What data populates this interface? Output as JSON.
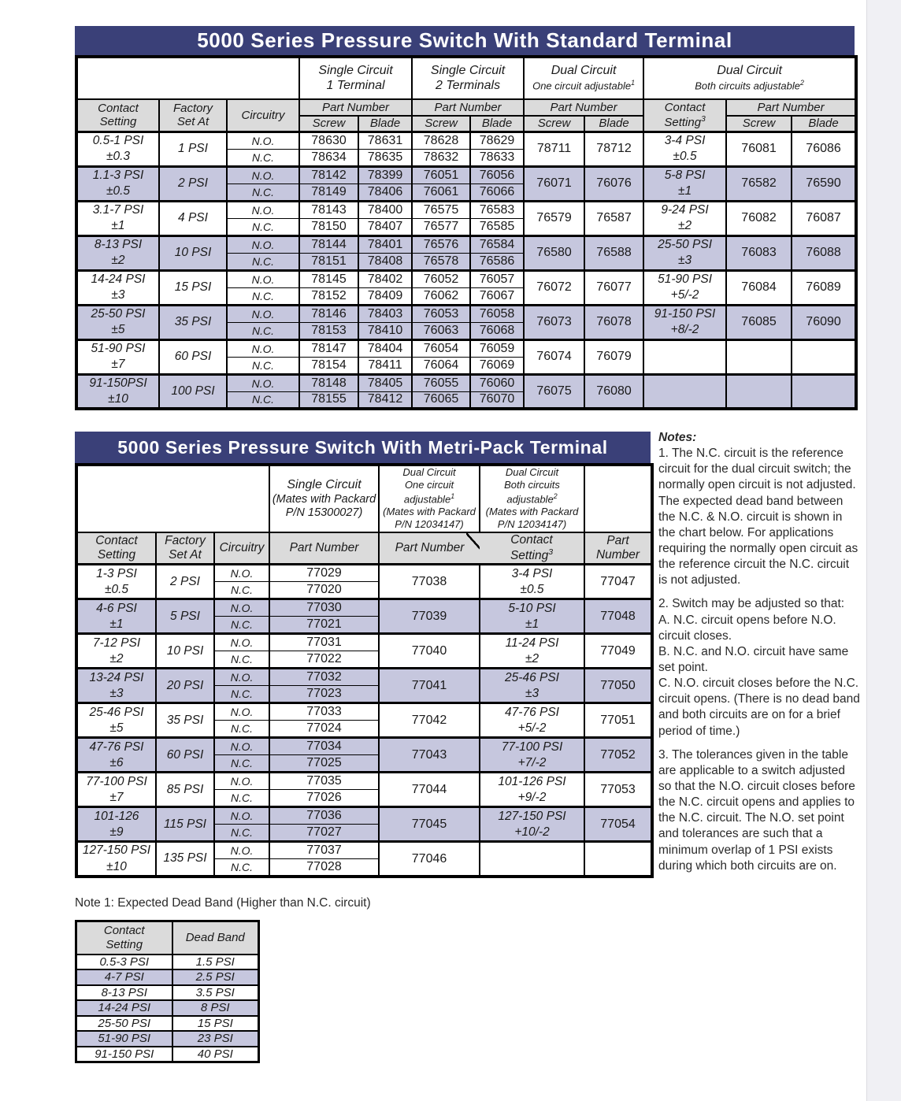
{
  "colors": {
    "title_bar": "#3a4078",
    "row_shade": "#c6c7de",
    "header_fill": "#dbdbdb",
    "page_edge_strip": "#f0f0f4"
  },
  "labels": {
    "contact_setting": "Contact\nSetting",
    "factory_set_at": "Factory\nSet At",
    "circuitry": "Circuitry",
    "part_number": "Part Number",
    "part_number_stacked": "Part\nNumber",
    "screw": "Screw",
    "blade": "Blade",
    "contact_setting3": "Contact\nSetting",
    "contact_setting3_sup": "3",
    "no": "N.O.",
    "nc": "N.C."
  },
  "table1": {
    "title": "5000 Series Pressure Switch With Standard Terminal",
    "group_headers": [
      {
        "l1": "Single Circuit",
        "l2": "1 Terminal",
        "sup": ""
      },
      {
        "l1": "Single Circuit",
        "l2": "2 Terminals",
        "sup": ""
      },
      {
        "l1": "Dual Circuit",
        "l2": "One circuit adjustable",
        "sup": "1"
      },
      {
        "l1": "Dual Circuit",
        "l2": "Both circuits adjustable",
        "sup": "2"
      }
    ],
    "rows": [
      {
        "cs": "0.5-1 PSI\n±0.3",
        "set": "1 PSI",
        "no": [
          "78630",
          "78631",
          "78628",
          "78629"
        ],
        "nc": [
          "78634",
          "78635",
          "78632",
          "78633"
        ],
        "d1": [
          "78711",
          "78712"
        ],
        "cs3": "3-4 PSI\n±0.5",
        "d2": [
          "76081",
          "76086"
        ],
        "shaded": false
      },
      {
        "cs": "1.1-3 PSI\n±0.5",
        "set": "2 PSI",
        "no": [
          "78142",
          "78399",
          "76051",
          "76056"
        ],
        "nc": [
          "78149",
          "78406",
          "76061",
          "76066"
        ],
        "d1": [
          "76071",
          "76076"
        ],
        "cs3": "5-8 PSI\n±1",
        "d2": [
          "76582",
          "76590"
        ],
        "shaded": true
      },
      {
        "cs": "3.1-7 PSI\n±1",
        "set": "4 PSI",
        "no": [
          "78143",
          "78400",
          "76575",
          "76583"
        ],
        "nc": [
          "78150",
          "78407",
          "76577",
          "76585"
        ],
        "d1": [
          "76579",
          "76587"
        ],
        "cs3": "9-24 PSI\n±2",
        "d2": [
          "76082",
          "76087"
        ],
        "shaded": false
      },
      {
        "cs": "8-13 PSI\n±2",
        "set": "10 PSI",
        "no": [
          "78144",
          "78401",
          "76576",
          "76584"
        ],
        "nc": [
          "78151",
          "78408",
          "76578",
          "76586"
        ],
        "d1": [
          "76580",
          "76588"
        ],
        "cs3": "25-50 PSI\n±3",
        "d2": [
          "76083",
          "76088"
        ],
        "shaded": true
      },
      {
        "cs": "14-24 PSI\n±3",
        "set": "15 PSI",
        "no": [
          "78145",
          "78402",
          "76052",
          "76057"
        ],
        "nc": [
          "78152",
          "78409",
          "76062",
          "76067"
        ],
        "d1": [
          "76072",
          "76077"
        ],
        "cs3": "51-90 PSI\n+5/-2",
        "d2": [
          "76084",
          "76089"
        ],
        "shaded": false
      },
      {
        "cs": "25-50 PSI\n±5",
        "set": "35 PSI",
        "no": [
          "78146",
          "78403",
          "76053",
          "76058"
        ],
        "nc": [
          "78153",
          "78410",
          "76063",
          "76068"
        ],
        "d1": [
          "76073",
          "76078"
        ],
        "cs3": "91-150 PSI\n+8/-2",
        "d2": [
          "76085",
          "76090"
        ],
        "shaded": true
      },
      {
        "cs": "51-90 PSI\n±7",
        "set": "60 PSI",
        "no": [
          "78147",
          "78404",
          "76054",
          "76059"
        ],
        "nc": [
          "78154",
          "78411",
          "76064",
          "76069"
        ],
        "d1": [
          "76074",
          "76079"
        ],
        "cs3": "",
        "d2": [
          "",
          ""
        ],
        "shaded": false
      },
      {
        "cs": "91-150PSI\n±10",
        "set": "100 PSI",
        "no": [
          "78148",
          "78405",
          "76055",
          "76060"
        ],
        "nc": [
          "78155",
          "78412",
          "76065",
          "76070"
        ],
        "d1": [
          "76075",
          "76080"
        ],
        "cs3": "",
        "d2": [
          "",
          ""
        ],
        "shaded": true
      }
    ]
  },
  "table2": {
    "title": "5000 Series Pressure Switch With Metri-Pack Terminal",
    "group_headers": [
      {
        "l1": "Single Circuit",
        "l2": "(Mates with Packard",
        "l3": "P/N 15300027)",
        "sup": ""
      },
      {
        "l1": "Dual Circuit",
        "l2": "One circuit adjustable",
        "sup": "1",
        "l3": "(Mates with Packard",
        "l4": "P/N 12034147)"
      },
      {
        "l1": "Dual Circuit",
        "l2": "Both circuits adjustable",
        "sup": "2",
        "l3": "(Mates with Packard",
        "l4": "P/N 12034147)"
      }
    ],
    "rows": [
      {
        "cs": "1-3 PSI\n±0.5",
        "set": "2 PSI",
        "no": "77029",
        "nc": "77020",
        "d1": "77038",
        "cs3": "3-4 PSI\n±0.5",
        "pn3": "77047",
        "shaded": false
      },
      {
        "cs": "4-6 PSI\n±1",
        "set": "5 PSI",
        "no": "77030",
        "nc": "77021",
        "d1": "77039",
        "cs3": "5-10 PSI\n±1",
        "pn3": "77048",
        "shaded": true
      },
      {
        "cs": "7-12 PSI\n±2",
        "set": "10 PSI",
        "no": "77031",
        "nc": "77022",
        "d1": "77040",
        "cs3": "11-24 PSI\n±2",
        "pn3": "77049",
        "shaded": false
      },
      {
        "cs": "13-24 PSI\n±3",
        "set": "20 PSI",
        "no": "77032",
        "nc": "77023",
        "d1": "77041",
        "cs3": "25-46 PSI\n±3",
        "pn3": "77050",
        "shaded": true
      },
      {
        "cs": "25-46 PSI\n±5",
        "set": "35 PSI",
        "no": "77033",
        "nc": "77024",
        "d1": "77042",
        "cs3": "47-76 PSI\n+5/-2",
        "pn3": "77051",
        "shaded": false
      },
      {
        "cs": "47-76 PSI\n±6",
        "set": "60 PSI",
        "no": "77034",
        "nc": "77025",
        "d1": "77043",
        "cs3": "77-100 PSI\n+7/-2",
        "pn3": "77052",
        "shaded": true
      },
      {
        "cs": "77-100 PSI\n±7",
        "set": "85 PSI",
        "no": "77035",
        "nc": "77026",
        "d1": "77044",
        "cs3": "101-126 PSI\n+9/-2",
        "pn3": "77053",
        "shaded": false
      },
      {
        "cs": "101-126\n±9",
        "set": "115 PSI",
        "no": "77036",
        "nc": "77027",
        "d1": "77045",
        "cs3": "127-150 PSI\n+10/-2",
        "pn3": "77054",
        "shaded": true
      },
      {
        "cs": "127-150 PSI\n±10",
        "set": "135 PSI",
        "no": "77037",
        "nc": "77028",
        "d1": "77046",
        "cs3": "",
        "pn3": "",
        "shaded": false
      }
    ]
  },
  "notes": {
    "title": "Notes:",
    "paragraphs": [
      "1. The N.C. circuit is the reference circuit for the dual circuit switch; the normally open circuit is not adjusted.  The expected dead band between the N.C. & N.O. circuit is shown in the chart below.  For applications requiring the normally open circuit as the reference circuit the N.C. circuit is not adjusted.",
      "2. Switch may be adjusted so that:\nA. N.C. circuit opens before N.O. circuit closes.\nB. N.C. and N.O. circuit have same set point.\nC. N.O. circuit closes before the N.C. circuit opens.  (There is no dead band and both circuits are on for a brief period of time.)",
      "3. The tolerances given in the table are applicable to a switch adjusted so that the N.O. circuit closes before the N.C. circuit opens and applies to the N.C. circuit.  The N.O. set point and tolerances are such that a minimum overlap of 1 PSI exists during which both circuits are on."
    ]
  },
  "deadband": {
    "caption": "Note 1: Expected Dead Band (Higher than N.C. circuit)",
    "headers": {
      "contact_setting": "Contact\nSetting",
      "dead_band": "Dead Band"
    },
    "rows": [
      {
        "cs": "0.5-3 PSI",
        "db": "1.5 PSI",
        "shaded": false
      },
      {
        "cs": "4-7 PSI",
        "db": "2.5 PSI",
        "shaded": true
      },
      {
        "cs": "8-13 PSI",
        "db": "3.5 PSI",
        "shaded": false
      },
      {
        "cs": "14-24 PSI",
        "db": "8 PSI",
        "shaded": true
      },
      {
        "cs": "25-50 PSI",
        "db": "15 PSI",
        "shaded": false
      },
      {
        "cs": "51-90 PSI",
        "db": "23 PSI",
        "shaded": true
      },
      {
        "cs": "91-150 PSI",
        "db": "40 PSI",
        "shaded": false
      }
    ]
  }
}
